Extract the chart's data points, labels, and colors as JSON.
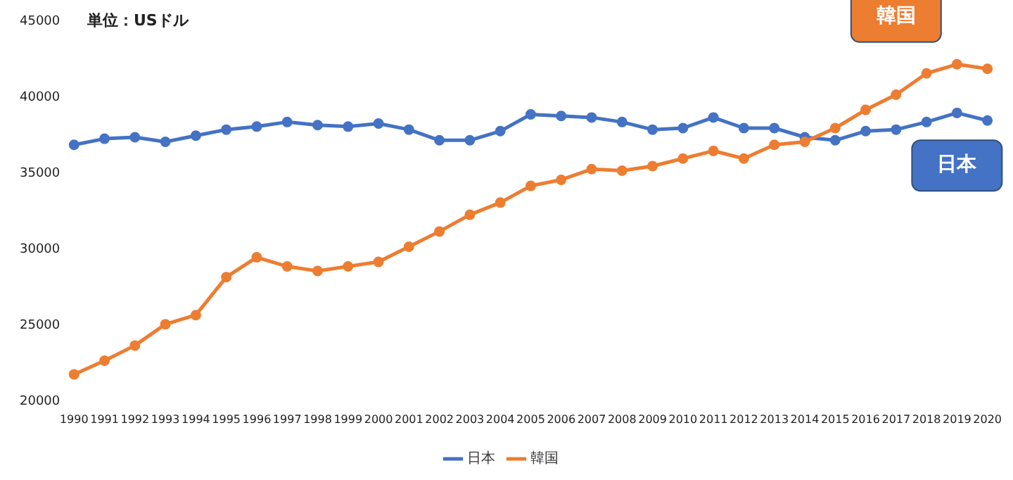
{
  "chart_data": {
    "type": "line",
    "annotations": [
      "単位：USドル"
    ],
    "categories": [
      "1990",
      "1991",
      "1992",
      "1993",
      "1994",
      "1995",
      "1996",
      "1997",
      "1998",
      "1999",
      "2000",
      "2001",
      "2002",
      "2003",
      "2004",
      "2005",
      "2006",
      "2007",
      "2008",
      "2009",
      "2010",
      "2011",
      "2012",
      "2013",
      "2014",
      "2015",
      "2016",
      "2017",
      "2018",
      "2019",
      "2020"
    ],
    "series": [
      {
        "name": "日本",
        "color": "#4472c4",
        "values": [
          36900,
          37300,
          37400,
          37100,
          37500,
          37900,
          38100,
          38400,
          38200,
          38100,
          38300,
          37900,
          37200,
          37200,
          37800,
          38900,
          38800,
          38700,
          38400,
          37900,
          38000,
          38700,
          38000,
          38000,
          37400,
          37200,
          37800,
          37900,
          38400,
          39000,
          38500
        ]
      },
      {
        "name": "韓国",
        "color": "#ed7d31",
        "values": [
          21800,
          22700,
          23700,
          25100,
          25700,
          28200,
          29500,
          28900,
          28600,
          28900,
          29200,
          30200,
          31200,
          32300,
          33100,
          34200,
          34600,
          35300,
          35200,
          35500,
          36000,
          36500,
          36000,
          36900,
          37100,
          38000,
          39200,
          40200,
          41600,
          42200,
          41900
        ]
      }
    ],
    "ylim": [
      20000,
      45000
    ],
    "yticks": [
      20000,
      25000,
      30000,
      35000,
      40000,
      45000
    ],
    "grid": false,
    "legend": "bottom",
    "marker": "circle",
    "line_style": "solid"
  }
}
